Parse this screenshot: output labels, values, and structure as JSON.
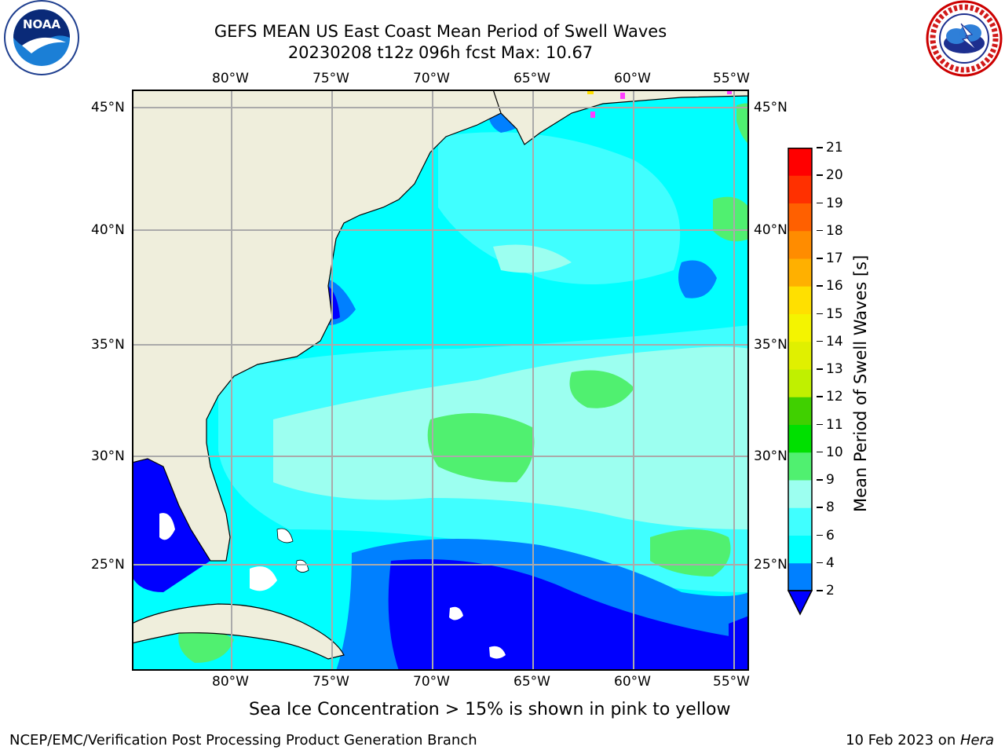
{
  "title": {
    "line1": "GEFS MEAN US East Coast Mean Period of Swell Waves",
    "line2": "20230208 t12z 096h fcst   Max: 10.67"
  },
  "logos": {
    "noaa": "NOAA",
    "nws_ring_text": "NATIONAL WEATHER SERVICE"
  },
  "map": {
    "region": "US East Coast",
    "lon_ticks": [
      "80°W",
      "75°W",
      "70°W",
      "65°W",
      "60°W",
      "55°W"
    ],
    "lat_ticks": [
      "45°N",
      "40°N",
      "35°N",
      "30°N",
      "25°N"
    ],
    "grid": true,
    "land_color": "#efeedc",
    "missing_color": "#ffffff"
  },
  "colorbar": {
    "label": "Mean Period of Swell Waves [s]",
    "ticks": [
      "21",
      "20",
      "19",
      "18",
      "17",
      "16",
      "15",
      "14",
      "13",
      "12",
      "11",
      "10",
      "9",
      "8",
      "6",
      "4",
      "2"
    ],
    "levels": [
      {
        "range": "< 2",
        "color": "#0000ff"
      },
      {
        "range": "2-4",
        "color": "#0080ff"
      },
      {
        "range": "4-6",
        "color": "#00ffff"
      },
      {
        "range": "6-8",
        "color": "#40ffff"
      },
      {
        "range": "8-9",
        "color": "#9cfff0"
      },
      {
        "range": "9-10",
        "color": "#50f070"
      },
      {
        "range": "10-11",
        "color": "#00e000"
      },
      {
        "range": "11-12",
        "color": "#40d000"
      },
      {
        "range": "12-13",
        "color": "#c0f000"
      },
      {
        "range": "13-14",
        "color": "#e0f000"
      },
      {
        "range": "14-15",
        "color": "#f4f400"
      },
      {
        "range": "15-16",
        "color": "#ffe000"
      },
      {
        "range": "16-17",
        "color": "#ffb000"
      },
      {
        "range": "17-18",
        "color": "#ff8c00"
      },
      {
        "range": "18-19",
        "color": "#ff6000"
      },
      {
        "range": "19-20",
        "color": "#ff3000"
      },
      {
        "range": "20-21",
        "color": "#ff0000"
      }
    ]
  },
  "sea_ice_note": "Sea Ice Concentration > 15% is shown in pink to yellow",
  "footer": {
    "left": "NCEP/EMC/Verification Post Processing Product Generation Branch",
    "date": "10 Feb 2023 on ",
    "host": "Hera"
  }
}
